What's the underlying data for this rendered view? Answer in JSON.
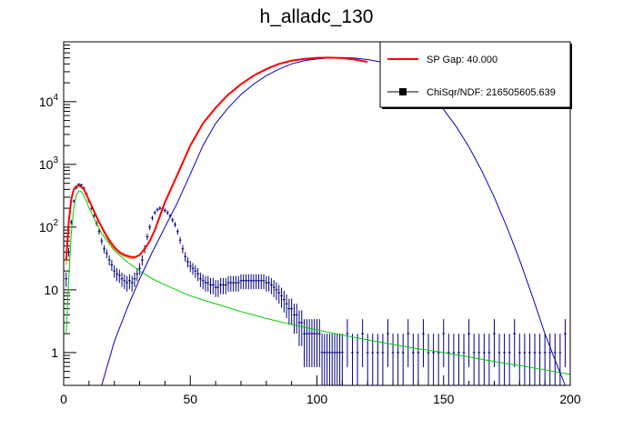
{
  "chart_data": {
    "type": "line",
    "title": "h_alladc_130",
    "xlim": [
      0,
      200
    ],
    "ylim": [
      0.3,
      90000
    ],
    "yscale": "log",
    "x_ticks": [
      0,
      50,
      100,
      150,
      200
    ],
    "x_tick_labels": [
      "0",
      "50",
      "100",
      "150",
      "200"
    ],
    "y_ticks": [
      1,
      10,
      100,
      1000,
      10000
    ],
    "y_tick_labels": [
      {
        "base": "",
        "exp": "",
        "text": "1"
      },
      {
        "base": "",
        "exp": "",
        "text": "10"
      },
      {
        "base": "10",
        "exp": "2",
        "text": ""
      },
      {
        "base": "10",
        "exp": "3",
        "text": ""
      },
      {
        "base": "10",
        "exp": "4",
        "text": ""
      }
    ],
    "legend": {
      "position": "top-right",
      "entries": [
        {
          "label": "SP Gap: 40.000",
          "color": "#ff0000",
          "marker": "line"
        },
        {
          "label": "ChiSqr/NDF: 216505605.639",
          "color": "#000000",
          "marker": "square"
        }
      ]
    },
    "colors": {
      "data": "#000080",
      "fit_total": "#ff0000",
      "fit_peak": "#0000cc",
      "fit_background": "#00cc00",
      "fit_pedestal": "#dd8800"
    },
    "series": [
      {
        "name": "data",
        "kind": "errorbars",
        "x": [
          1,
          2,
          3,
          4,
          5,
          6,
          7,
          8,
          9,
          10,
          11,
          12,
          13,
          14,
          15,
          16,
          17,
          18,
          19,
          20,
          21,
          22,
          23,
          24,
          25,
          26,
          27,
          28,
          29,
          30,
          31,
          32,
          33,
          34,
          35,
          36,
          37,
          38,
          39,
          40,
          41,
          42,
          43,
          44,
          45,
          46,
          47,
          48,
          49,
          50,
          51,
          52,
          53,
          54,
          55,
          56,
          57,
          58,
          59,
          60,
          61,
          62,
          63,
          64,
          65,
          66,
          67,
          68,
          69,
          70,
          71,
          72,
          73,
          74,
          75,
          76,
          77,
          78,
          79,
          80,
          81,
          82,
          83,
          84,
          85,
          86,
          87,
          88,
          89,
          90,
          91,
          92,
          93,
          94,
          95,
          96,
          97,
          98,
          99,
          100,
          101,
          102,
          103,
          104,
          105,
          106,
          107,
          108,
          109,
          110,
          112,
          114,
          116,
          118,
          120,
          122,
          124,
          126,
          128,
          130,
          132,
          134,
          136,
          138,
          140,
          142,
          144,
          146,
          148,
          150,
          152,
          154,
          156,
          158,
          160,
          162,
          164,
          166,
          168,
          170,
          172,
          174,
          176,
          178,
          180,
          182,
          184,
          186,
          188,
          190,
          192,
          194,
          196,
          198
        ],
        "y": [
          15,
          40,
          120,
          260,
          420,
          480,
          470,
          420,
          340,
          260,
          200,
          150,
          115,
          85,
          60,
          45,
          38,
          30,
          25,
          20,
          18,
          17,
          15,
          14,
          13,
          14,
          13,
          15,
          18,
          22,
          30,
          45,
          70,
          100,
          140,
          170,
          190,
          200,
          195,
          185,
          170,
          150,
          130,
          110,
          85,
          62,
          45,
          34,
          28,
          24,
          22,
          20,
          18,
          15,
          14,
          13,
          13,
          12,
          12,
          11,
          11,
          12,
          12,
          12,
          13,
          13,
          13,
          13,
          13,
          14,
          14,
          14,
          14,
          14,
          14,
          14,
          14,
          14,
          14,
          13,
          13,
          12,
          11,
          10,
          9,
          8,
          7,
          6,
          5,
          5,
          4,
          4,
          3,
          3,
          2,
          2,
          2,
          2,
          2,
          2,
          2,
          1,
          1,
          1,
          1,
          1,
          1,
          1,
          1,
          1,
          2,
          1,
          1,
          2,
          1,
          1,
          1,
          1,
          2,
          1,
          1,
          1,
          2,
          1,
          1,
          2,
          1,
          1,
          1,
          2,
          1,
          1,
          1,
          1,
          2,
          1,
          1,
          1,
          1,
          2,
          1,
          1,
          1,
          2,
          1,
          1,
          1,
          1,
          1,
          1,
          1,
          1,
          1,
          2
        ]
      },
      {
        "name": "",
        "kind": "fit",
        "color": "#ff0000",
        "x": [
          1,
          2,
          3,
          4,
          5,
          6,
          7,
          8,
          9,
          10,
          12,
          14,
          16,
          18,
          20,
          22,
          24,
          26,
          28,
          30,
          32,
          34,
          36,
          38,
          40,
          45,
          50,
          55,
          60,
          65,
          70,
          75,
          80,
          85,
          90,
          95,
          100,
          105,
          110,
          115,
          120
        ],
        "y": [
          30,
          120,
          280,
          400,
          450,
          460,
          440,
          400,
          330,
          270,
          180,
          120,
          85,
          62,
          48,
          40,
          36,
          34,
          33,
          36,
          45,
          60,
          90,
          150,
          250,
          700,
          2000,
          4500,
          8000,
          13000,
          19000,
          26000,
          33000,
          40000,
          45000,
          48000,
          50000,
          50500,
          49500,
          47000,
          43000
        ]
      },
      {
        "name": "",
        "kind": "fit",
        "color": "#0000cc",
        "x": [
          15,
          20,
          25,
          30,
          35,
          40,
          45,
          50,
          55,
          60,
          65,
          70,
          75,
          80,
          85,
          90,
          95,
          100,
          105,
          110,
          115,
          120,
          125,
          130,
          135,
          140,
          145,
          150,
          155,
          160,
          165,
          170,
          175,
          180,
          185,
          190,
          195,
          198
        ],
        "y": [
          0.3,
          1.5,
          5,
          15,
          40,
          100,
          250,
          700,
          2000,
          4500,
          8000,
          13000,
          19000,
          26000,
          33000,
          40000,
          45000,
          48000,
          50000,
          50500,
          49500,
          47000,
          43000,
          36000,
          28000,
          20000,
          13000,
          7500,
          4000,
          1900,
          800,
          300,
          100,
          30,
          8,
          2,
          0.6,
          0.3
        ]
      },
      {
        "name": "",
        "kind": "fit",
        "color": "#00cc00",
        "x": [
          1,
          2,
          3,
          4,
          5,
          6,
          7,
          8,
          9,
          10,
          15,
          20,
          25,
          30,
          35,
          40,
          50,
          60,
          70,
          80,
          90,
          100,
          110,
          120,
          130,
          140,
          150,
          160,
          170,
          180,
          190,
          200
        ],
        "y": [
          2,
          15,
          80,
          200,
          320,
          380,
          370,
          320,
          260,
          200,
          80,
          42,
          28,
          20,
          15,
          12,
          8,
          6,
          4.5,
          3.5,
          2.8,
          2.3,
          1.9,
          1.6,
          1.35,
          1.15,
          1.0,
          0.85,
          0.72,
          0.62,
          0.53,
          0.45
        ]
      },
      {
        "name": "",
        "kind": "fit",
        "color": "#dd8800",
        "x": [
          1,
          2,
          3,
          4,
          5,
          6,
          7,
          8,
          9,
          10,
          12,
          14,
          16,
          18,
          20,
          22,
          24,
          26,
          28
        ],
        "y": [
          25,
          110,
          270,
          390,
          440,
          450,
          430,
          390,
          320,
          260,
          170,
          115,
          80,
          58,
          45,
          38,
          34,
          32,
          31
        ]
      }
    ]
  }
}
